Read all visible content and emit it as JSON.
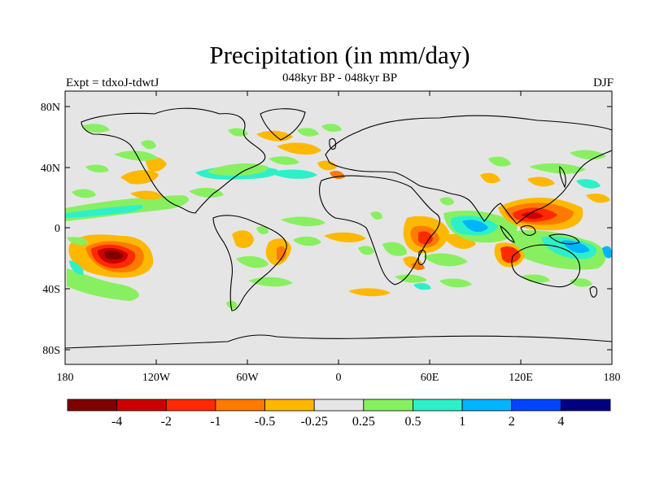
{
  "title": "Precipitation (in mm/day)",
  "subtitle": "048kyr BP - 048kyr BP",
  "left_label": "Expt = tdxoJ-tdwtJ",
  "right_label": "DJF",
  "map": {
    "background_color": "#e5e5e5",
    "lon_ticks": [
      "180",
      "120W",
      "60W",
      "0",
      "60E",
      "120E",
      "180"
    ],
    "lat_ticks": [
      "80N",
      "40N",
      "0",
      "40S",
      "80S"
    ]
  },
  "colorbar": {
    "colors": [
      "#800000",
      "#cc0000",
      "#ff2a00",
      "#ff7a00",
      "#ffb800",
      "#e5e5e5",
      "#88f060",
      "#2ef0c8",
      "#00b4ff",
      "#0044ff",
      "#000080"
    ],
    "labels": [
      "-4",
      "-2",
      "-1",
      "-0.5",
      "-0.25",
      "0.25",
      "0.5",
      "1",
      "2",
      "4"
    ]
  },
  "chart_data": {
    "type": "heatmap",
    "projection": "cylindrical equidistant",
    "variable": "Precipitation (in mm/day)",
    "season": "DJF",
    "lon_range": [
      -180,
      180
    ],
    "lat_range": [
      -90,
      90
    ],
    "levels": [
      -4,
      -2,
      -1,
      -0.5,
      -0.25,
      0.25,
      0.5,
      1,
      2,
      4
    ],
    "anomalies": [
      {
        "lon": -145,
        "lat": -18,
        "level": -4
      },
      {
        "lon": -140,
        "lat": -18,
        "level": -2
      },
      {
        "lon": -150,
        "lat": -32,
        "level": 0.5
      },
      {
        "lon": -170,
        "lat": 10,
        "level": 0.5
      },
      {
        "lon": -150,
        "lat": 8,
        "level": 1
      },
      {
        "lon": -125,
        "lat": 38,
        "level": -0.5
      },
      {
        "lon": -50,
        "lat": 45,
        "level": 1
      },
      {
        "lon": -40,
        "lat": 65,
        "level": -0.5
      },
      {
        "lon": -35,
        "lat": -20,
        "level": -1
      },
      {
        "lon": 50,
        "lat": -10,
        "level": -2
      },
      {
        "lon": 65,
        "lat": 0,
        "level": 1
      },
      {
        "lon": 90,
        "lat": 5,
        "level": 2
      },
      {
        "lon": 125,
        "lat": 10,
        "level": -2
      },
      {
        "lon": 115,
        "lat": -20,
        "level": -1
      },
      {
        "lon": 150,
        "lat": -15,
        "level": 1
      },
      {
        "lon": 70,
        "lat": 35,
        "level": -0.5
      }
    ]
  }
}
